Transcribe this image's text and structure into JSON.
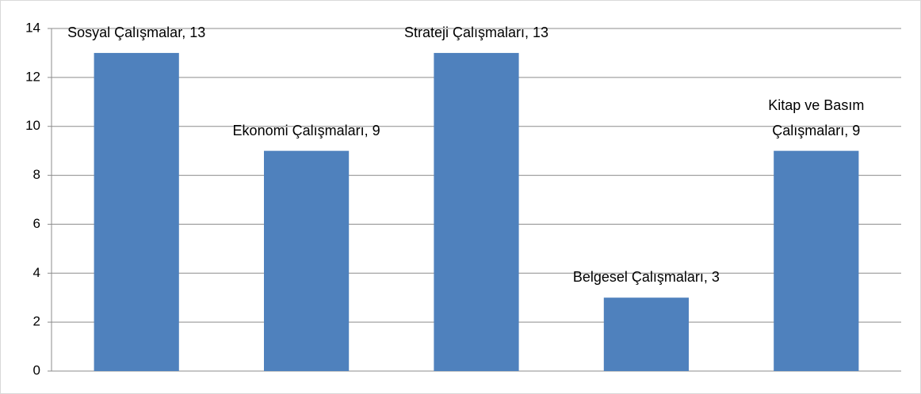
{
  "chart_data": {
    "type": "bar",
    "values": [
      13,
      9,
      13,
      3,
      9
    ],
    "value_labels": [
      "Sosyal Çalışmalar, 13",
      "Ekonomi Çalışmaları, 9",
      "Strateji Çalışmaları, 13",
      "Belgesel Çalışmaları, 3",
      "Kitap ve Basım Çalışmaları, 9"
    ],
    "color": "#4f81bd",
    "ylim": [
      0,
      14
    ],
    "yticks": [
      0,
      2,
      4,
      6,
      8,
      10,
      12,
      14
    ],
    "grid": true
  }
}
